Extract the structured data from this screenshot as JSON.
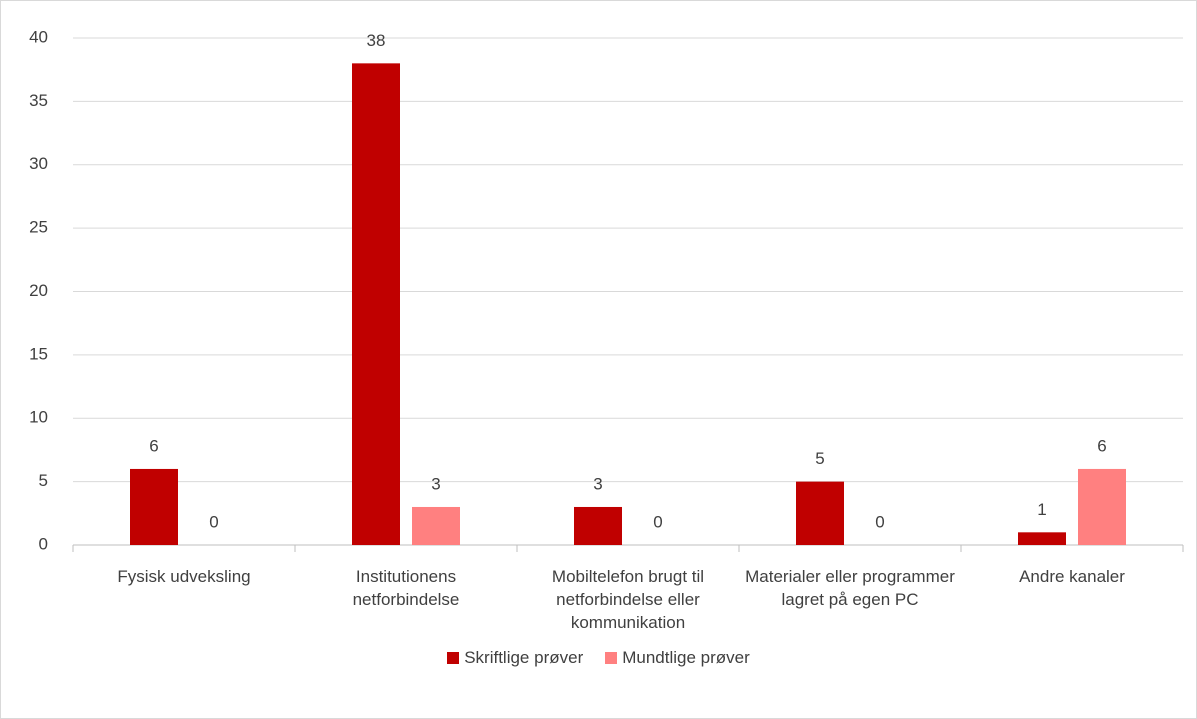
{
  "chart_data": {
    "type": "bar",
    "categories": [
      "Fysisk udveksling",
      "Institutionens netforbindelse",
      "Mobiltelefon brugt til netforbindelse eller kommunikation",
      "Materialer eller programmer lagret på egen PC",
      "Andre kanaler"
    ],
    "series": [
      {
        "name": "Skriftlige prøver",
        "color": "#c00000",
        "values": [
          6,
          38,
          3,
          5,
          1
        ]
      },
      {
        "name": "Mundtlige prøver",
        "color": "#ff8080",
        "values": [
          0,
          3,
          0,
          0,
          6
        ]
      }
    ],
    "ylim": [
      0,
      40
    ],
    "yticks": [
      0,
      5,
      10,
      15,
      20,
      25,
      30,
      35,
      40
    ],
    "grid": true,
    "legend": "bottom"
  }
}
